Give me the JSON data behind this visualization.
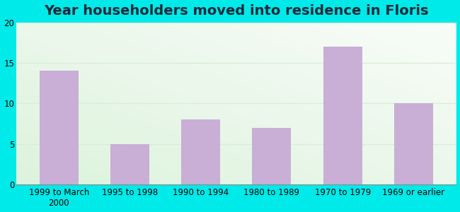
{
  "title": "Year householders moved into residence in Floris",
  "categories": [
    "1999 to March\n2000",
    "1995 to 1998",
    "1990 to 1994",
    "1980 to 1989",
    "1970 to 1979",
    "1969 or earlier"
  ],
  "values": [
    14,
    5,
    8,
    7,
    17,
    10
  ],
  "bar_color": "#c9aed6",
  "ylim": [
    0,
    20
  ],
  "yticks": [
    0,
    5,
    10,
    15,
    20
  ],
  "title_fontsize": 14,
  "tick_fontsize": 8.5,
  "bg_outer": "#00eaea",
  "bg_plot_color1": "#e8f5e8",
  "bg_plot_color2": "#f5fbf5",
  "grid_color": "#d8eed8",
  "axis_color": "#aaaaaa",
  "title_color": "#1a2a3a"
}
